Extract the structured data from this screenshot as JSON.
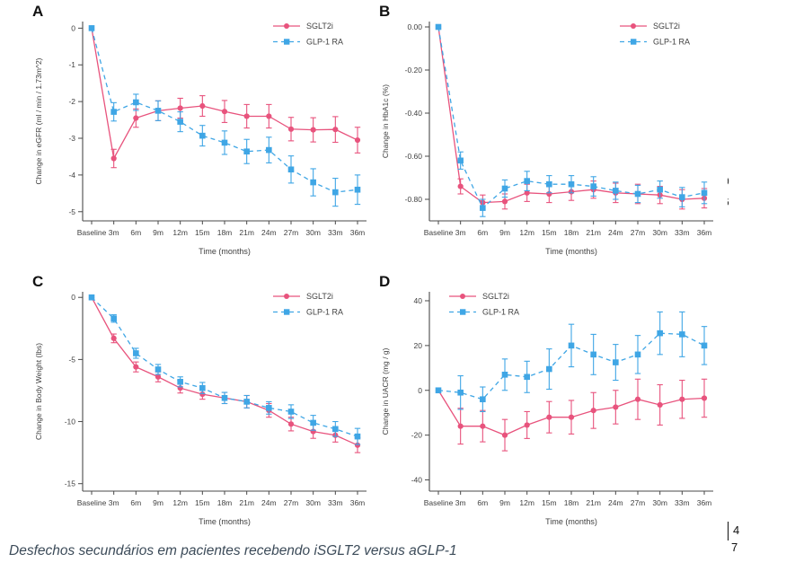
{
  "caption": {
    "text": "Desfechos secundários em pacientes recebendo iSGLT2 versus aGLP-1"
  },
  "margin_artifacts": {
    "clipped_digit_top": "0",
    "clipped_digit_bottom": "6",
    "page_marker_top": "4",
    "page_marker_bottom": "7"
  },
  "colors": {
    "sglt2i": "#e8537d",
    "glp1_ra": "#3fa6e5",
    "axis": "#4a4a4a",
    "caption_text": "#3c4b59"
  },
  "chart_data": [
    {
      "panel_label": "A",
      "type": "line",
      "title": "",
      "xlabel": "Time (months)",
      "ylabel": "Change in eGFR (ml / min / 1.73m^2)",
      "categories": [
        "Baseline",
        "3m",
        "6m",
        "9m",
        "12m",
        "15m",
        "18m",
        "21m",
        "24m",
        "27m",
        "30m",
        "33m",
        "36m"
      ],
      "ylim": [
        -5.25,
        0.18
      ],
      "yticks": [
        0,
        -1,
        -2,
        -3,
        -4,
        -5
      ],
      "ytick_labels": [
        "0",
        "-1",
        "-2",
        "-3",
        "-4",
        "-5"
      ],
      "grid": false,
      "legend_position": "top-right",
      "series": [
        {
          "name": "SGLT2i",
          "color": "#e8537d",
          "marker": "circle",
          "dash": "solid",
          "values": [
            0,
            -3.55,
            -2.45,
            -2.25,
            -2.18,
            -2.12,
            -2.27,
            -2.4,
            -2.4,
            -2.75,
            -2.77,
            -2.76,
            -3.05
          ],
          "errors": [
            0,
            0.25,
            0.25,
            0.27,
            0.27,
            0.28,
            0.3,
            0.32,
            0.32,
            0.32,
            0.33,
            0.35,
            0.35
          ]
        },
        {
          "name": "GLP-1 RA",
          "color": "#3fa6e5",
          "marker": "square",
          "dash": "dashed",
          "values": [
            0,
            -2.28,
            -2.02,
            -2.25,
            -2.55,
            -2.93,
            -3.12,
            -3.36,
            -3.32,
            -3.85,
            -4.2,
            -4.47,
            -4.4
          ],
          "errors": [
            0,
            0.25,
            0.22,
            0.27,
            0.27,
            0.28,
            0.32,
            0.33,
            0.35,
            0.37,
            0.37,
            0.38,
            0.4
          ]
        }
      ]
    },
    {
      "panel_label": "B",
      "type": "line",
      "title": "",
      "xlabel": "Time (months)",
      "ylabel": "Change in HbA1c (%)",
      "categories": [
        "Baseline",
        "3m",
        "6m",
        "9m",
        "12m",
        "15m",
        "18m",
        "21m",
        "24m",
        "27m",
        "30m",
        "33m",
        "36m"
      ],
      "ylim": [
        -0.9,
        0.025
      ],
      "yticks": [
        0,
        -0.2,
        -0.4,
        -0.6,
        -0.8
      ],
      "ytick_labels": [
        "0.00",
        "-0.20",
        "-0.40",
        "-0.60",
        "-0.80"
      ],
      "grid": false,
      "legend_position": "top-right",
      "series": [
        {
          "name": "SGLT2i",
          "color": "#e8537d",
          "marker": "circle",
          "dash": "solid",
          "values": [
            0,
            -0.74,
            -0.815,
            -0.81,
            -0.77,
            -0.775,
            -0.765,
            -0.755,
            -0.77,
            -0.775,
            -0.78,
            -0.8,
            -0.795
          ],
          "errors": [
            0,
            0.035,
            0.035,
            0.035,
            0.04,
            0.04,
            0.04,
            0.04,
            0.045,
            0.045,
            0.04,
            0.045,
            0.045
          ]
        },
        {
          "name": "GLP-1 RA",
          "color": "#3fa6e5",
          "marker": "square",
          "dash": "dashed",
          "values": [
            0,
            -0.62,
            -0.84,
            -0.75,
            -0.715,
            -0.73,
            -0.73,
            -0.74,
            -0.76,
            -0.775,
            -0.755,
            -0.79,
            -0.77
          ],
          "errors": [
            0,
            0.04,
            0.04,
            0.04,
            0.045,
            0.04,
            0.04,
            0.045,
            0.04,
            0.04,
            0.04,
            0.045,
            0.05
          ]
        }
      ]
    },
    {
      "panel_label": "C",
      "type": "line",
      "title": "",
      "xlabel": "Time (months)",
      "ylabel": "Change in Body Weight (lbs)",
      "categories": [
        "Baseline",
        "3m",
        "6m",
        "9m",
        "12m",
        "15m",
        "18m",
        "21m",
        "24m",
        "27m",
        "30m",
        "33m",
        "36m"
      ],
      "ylim": [
        -15.6,
        0.45
      ],
      "yticks": [
        0,
        -5,
        -10,
        -15
      ],
      "ytick_labels": [
        "0",
        "-5",
        "-10",
        "-15"
      ],
      "grid": false,
      "legend_position": "top-right",
      "series": [
        {
          "name": "SGLT2i",
          "color": "#e8537d",
          "marker": "circle",
          "dash": "solid",
          "values": [
            0,
            -3.3,
            -5.6,
            -6.4,
            -7.3,
            -7.8,
            -8.1,
            -8.4,
            -9.1,
            -10.2,
            -10.8,
            -11.1,
            -11.9
          ],
          "errors": [
            0,
            0.35,
            0.4,
            0.4,
            0.4,
            0.4,
            0.45,
            0.5,
            0.55,
            0.55,
            0.55,
            0.55,
            0.6
          ]
        },
        {
          "name": "GLP-1 RA",
          "color": "#3fa6e5",
          "marker": "square",
          "dash": "dashed",
          "values": [
            0,
            -1.7,
            -4.5,
            -5.8,
            -6.8,
            -7.3,
            -8.1,
            -8.4,
            -8.9,
            -9.2,
            -10.1,
            -10.6,
            -11.2
          ],
          "errors": [
            0,
            0.3,
            0.4,
            0.4,
            0.4,
            0.45,
            0.45,
            0.5,
            0.5,
            0.55,
            0.6,
            0.6,
            0.65
          ]
        }
      ]
    },
    {
      "panel_label": "D",
      "type": "line",
      "title": "",
      "xlabel": "Time (months)",
      "ylabel": "Change in UACR (mg / g)",
      "categories": [
        "Baseline",
        "3m",
        "6m",
        "9m",
        "12m",
        "15m",
        "18m",
        "21m",
        "24m",
        "27m",
        "30m",
        "33m",
        "36m"
      ],
      "ylim": [
        -45,
        44
      ],
      "yticks": [
        40,
        20,
        0,
        -20,
        -40
      ],
      "ytick_labels": [
        "40",
        "20",
        "0",
        "-20",
        "-40"
      ],
      "grid": false,
      "legend_position": "top-left",
      "series": [
        {
          "name": "SGLT2i",
          "color": "#e8537d",
          "marker": "circle",
          "dash": "solid",
          "values": [
            0,
            -16,
            -16,
            -20,
            -15.5,
            -12,
            -12,
            -9,
            -7.5,
            -4,
            -6.5,
            -4,
            -3.5
          ],
          "errors": [
            0,
            8,
            7,
            7,
            6,
            7,
            7.5,
            8,
            7.5,
            9,
            9,
            8.5,
            8.5
          ]
        },
        {
          "name": "GLP-1 RA",
          "color": "#3fa6e5",
          "marker": "square",
          "dash": "dashed",
          "values": [
            0,
            -1,
            -4,
            7,
            6,
            9.5,
            20,
            16,
            12.5,
            16,
            25.5,
            25,
            20
          ],
          "errors": [
            0,
            7.5,
            5.5,
            7,
            7,
            9,
            9.5,
            9,
            8,
            8.5,
            9.5,
            10,
            8.5
          ]
        }
      ]
    }
  ]
}
